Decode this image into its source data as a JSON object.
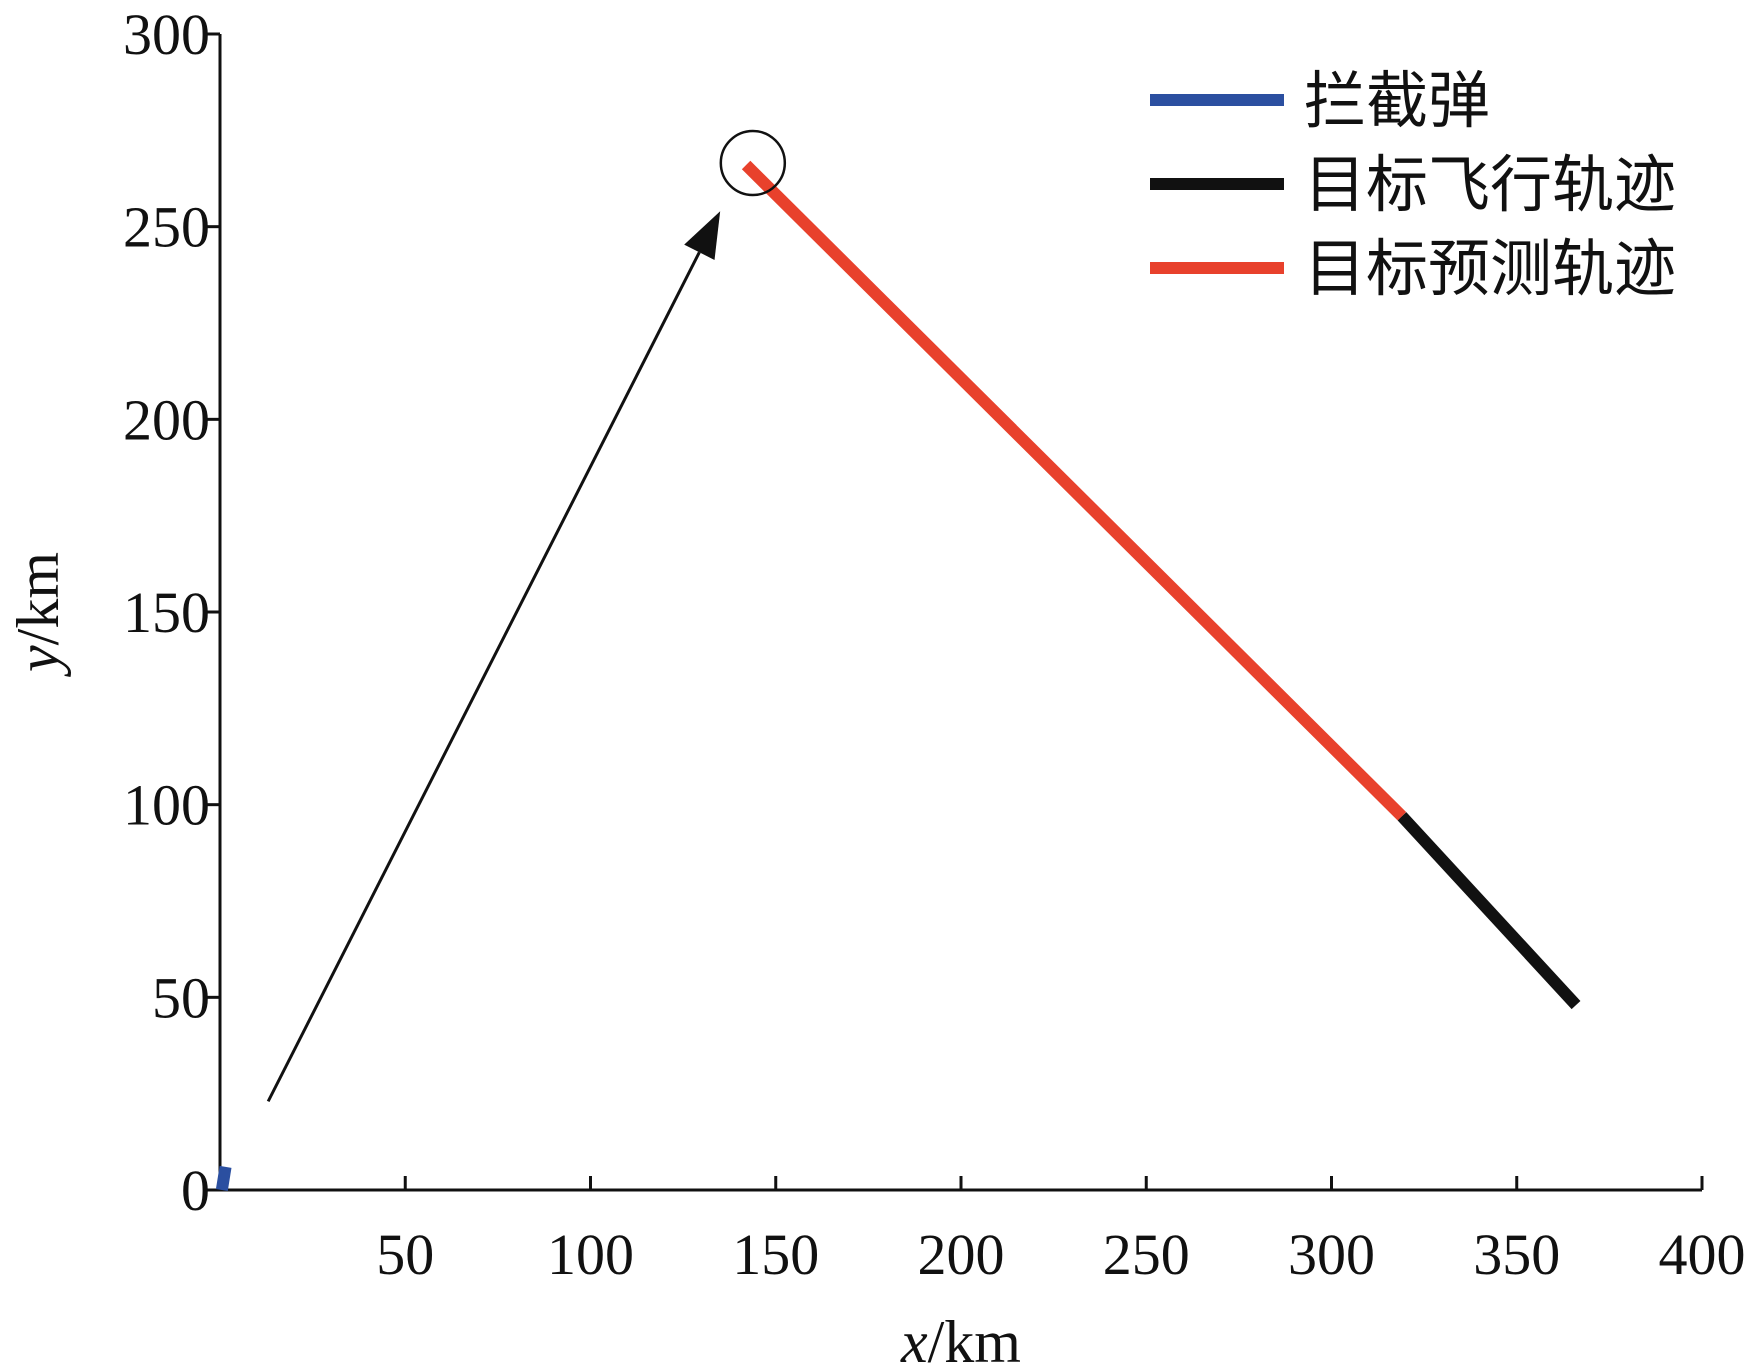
{
  "chart_data": {
    "type": "line",
    "title": "",
    "xlabel": {
      "var": "x",
      "unit": "/km"
    },
    "ylabel": {
      "var": "y",
      "unit": "/km"
    },
    "xlim": [
      0,
      400
    ],
    "ylim": [
      0,
      300
    ],
    "xticks": [
      50,
      100,
      150,
      200,
      250,
      300,
      350,
      400
    ],
    "yticks": [
      0,
      50,
      100,
      150,
      200,
      250,
      300
    ],
    "grid": false,
    "legend_position": "top-right",
    "series": [
      {
        "name": "拦截弹",
        "color": "#2b4fa0",
        "points": [
          [
            0.5,
            0
          ],
          [
            1.5,
            6
          ]
        ]
      },
      {
        "name": "目标飞行轨迹",
        "color": "#111111",
        "points": [
          [
            366,
            48
          ],
          [
            319,
            97
          ]
        ]
      },
      {
        "name": "目标预测轨迹",
        "color": "#e8412c",
        "points": [
          [
            319,
            97
          ],
          [
            142,
            266
          ]
        ]
      }
    ],
    "annotations": {
      "arrow": {
        "from": [
          13,
          23
        ],
        "to": [
          135,
          254
        ],
        "color": "#111111"
      },
      "intercept_circle": {
        "center": [
          143,
          266
        ],
        "color": "#111111"
      }
    }
  }
}
